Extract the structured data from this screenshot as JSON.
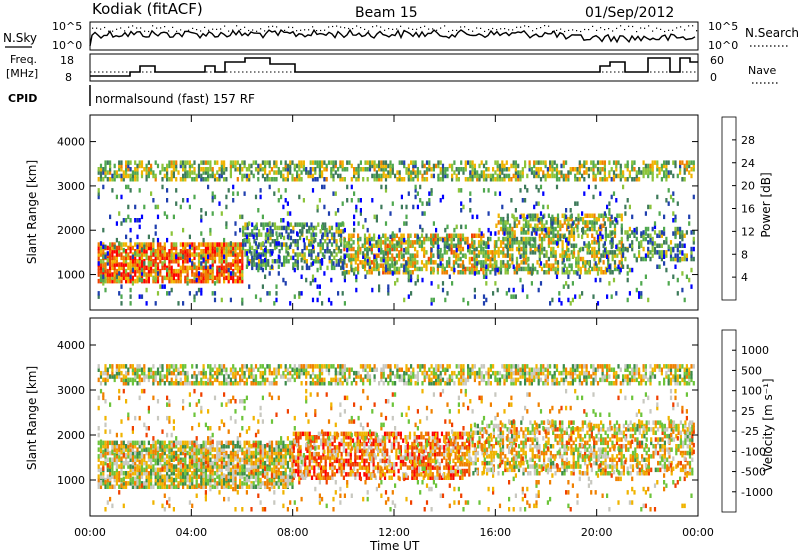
{
  "header": {
    "station": "Kodiak (fitACF)",
    "beam": "Beam 15",
    "date": "01/Sep/2012"
  },
  "top_panels": {
    "nsky_label": "N.Sky",
    "nsky_ticks": [
      "10^5",
      "10^0"
    ],
    "nsearch_label": "N.Search",
    "nsearch_ticks": [
      "10^5",
      "10^0"
    ],
    "freq_label_line1": "Freq.",
    "freq_label_line2": "[MHz]",
    "freq_ticks": [
      "18",
      "8"
    ],
    "nave_label": "Nave",
    "nave_ticks": [
      "60",
      "0"
    ],
    "cpid_label": "CPID",
    "cpid_text": "normalsound (fast) 157 RF"
  },
  "colors": {
    "power_scale": [
      "#0000ff",
      "#1f3fae",
      "#3d7a5a",
      "#4fa84f",
      "#8cc43a",
      "#f0b400",
      "#f08000",
      "#f04000",
      "#ff0000"
    ],
    "velocity_scale": [
      "#1a1aa8",
      "#2e58c0",
      "#3b8c4a",
      "#6cc43a",
      "#c8c8c0",
      "#f0b400",
      "#f08000",
      "#f04000",
      "#ff0000"
    ]
  },
  "chart_data": [
    {
      "type": "heatmap",
      "name": "power",
      "ylabel": "Slant Range [km]",
      "xlabel": "",
      "x_ticks": [
        "00:00",
        "04:00",
        "08:00",
        "12:00",
        "16:00",
        "20:00",
        "00:00"
      ],
      "y_ticks": [
        "1000",
        "2000",
        "3000",
        "4000"
      ],
      "ylim": [
        200,
        4600
      ],
      "xlim_hours": [
        0,
        24
      ],
      "colorbar_label": "Power [dB]",
      "colorbar_ticks": [
        "28",
        "24",
        "20",
        "16",
        "12",
        "8",
        "4"
      ],
      "bands": [
        {
          "t0": 0.3,
          "t1": 23.8,
          "r0": 3100,
          "r1": 3550,
          "density": 0.55,
          "level": 0.45
        },
        {
          "t0": 0.3,
          "t1": 6.0,
          "r0": 800,
          "r1": 1700,
          "density": 0.8,
          "level": 0.75
        },
        {
          "t0": 6.0,
          "t1": 10.0,
          "r0": 1100,
          "r1": 2100,
          "density": 0.5,
          "level": 0.35
        },
        {
          "t0": 10.0,
          "t1": 16.0,
          "r0": 1000,
          "r1": 1900,
          "density": 0.6,
          "level": 0.55
        },
        {
          "t0": 16.0,
          "t1": 21.0,
          "r0": 1000,
          "r1": 2300,
          "density": 0.55,
          "level": 0.5
        },
        {
          "t0": 21.0,
          "t1": 23.8,
          "r0": 1300,
          "r1": 2000,
          "density": 0.4,
          "level": 0.35
        },
        {
          "t0": 0.3,
          "t1": 23.8,
          "r0": 300,
          "r1": 3000,
          "density": 0.08,
          "level": 0.25
        }
      ]
    },
    {
      "type": "heatmap",
      "name": "velocity",
      "ylabel": "Slant Range [km]",
      "xlabel": "Time UT",
      "x_ticks": [
        "00:00",
        "04:00",
        "08:00",
        "12:00",
        "16:00",
        "20:00",
        "00:00"
      ],
      "y_ticks": [
        "1000",
        "2000",
        "3000",
        "4000"
      ],
      "ylim": [
        200,
        4600
      ],
      "xlim_hours": [
        0,
        24
      ],
      "colorbar_label": "Velocity [m s⁻¹]",
      "colorbar_ticks": [
        "1000",
        "500",
        "100",
        "25",
        "-25",
        "-100",
        "-500",
        "-1000"
      ],
      "bands": [
        {
          "t0": 0.3,
          "t1": 23.8,
          "r0": 3100,
          "r1": 3550,
          "density": 0.6,
          "level": 0.5
        },
        {
          "t0": 0.3,
          "t1": 8.0,
          "r0": 800,
          "r1": 1800,
          "density": 0.8,
          "level": 0.5
        },
        {
          "t0": 8.0,
          "t1": 15.0,
          "r0": 1000,
          "r1": 2000,
          "density": 0.65,
          "level": 0.72
        },
        {
          "t0": 15.0,
          "t1": 23.8,
          "r0": 1100,
          "r1": 2300,
          "density": 0.5,
          "level": 0.55
        },
        {
          "t0": 0.3,
          "t1": 23.8,
          "r0": 300,
          "r1": 3000,
          "density": 0.08,
          "level": 0.6
        }
      ]
    }
  ]
}
